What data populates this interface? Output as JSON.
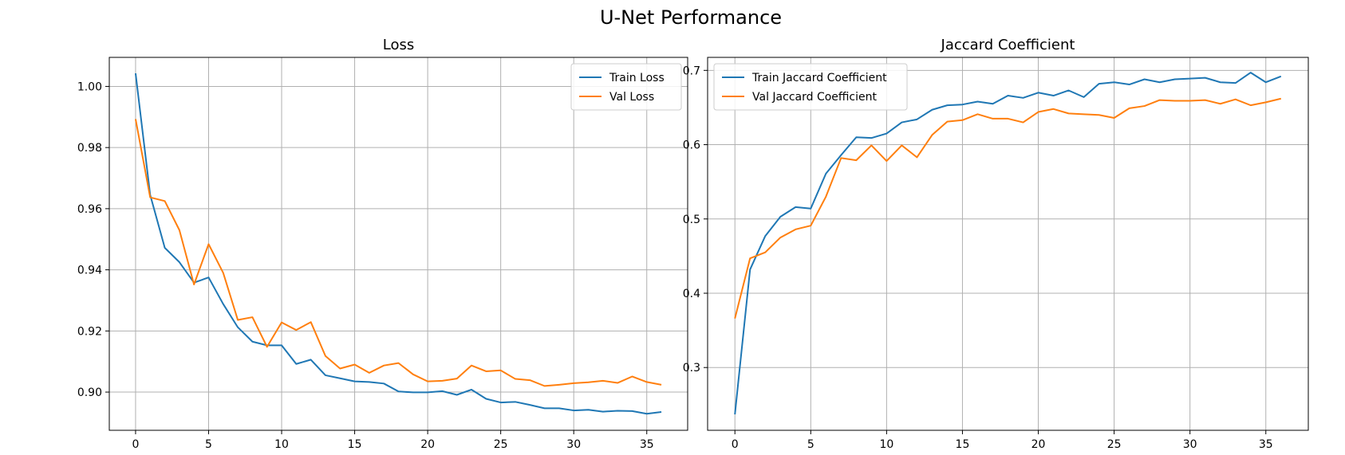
{
  "figure": {
    "title": "U-Net Performance"
  },
  "colors": {
    "train": "#1f77b4",
    "val": "#ff7f0e",
    "grid": "#b0b0b0",
    "legend_border": "#cccccc"
  },
  "chart_data": [
    {
      "type": "line",
      "title": "Loss",
      "xlabel": "",
      "ylabel": "",
      "xlim": [
        -1.8,
        37.8
      ],
      "ylim": [
        0.8875,
        1.0095
      ],
      "xticks": [
        0,
        5,
        10,
        15,
        20,
        25,
        30,
        35
      ],
      "yticks": [
        0.9,
        0.92,
        0.94,
        0.96,
        0.98,
        1.0
      ],
      "ytick_labels": [
        "0.90",
        "0.92",
        "0.94",
        "0.96",
        "0.98",
        "1.00"
      ],
      "grid": true,
      "legend_position": "top-right",
      "x": [
        0,
        1,
        2,
        3,
        4,
        5,
        6,
        7,
        8,
        9,
        10,
        11,
        12,
        13,
        14,
        15,
        16,
        17,
        18,
        19,
        20,
        21,
        22,
        23,
        24,
        25,
        26,
        27,
        28,
        29,
        30,
        31,
        32,
        33,
        34,
        35,
        36
      ],
      "series": [
        {
          "name": "Train Loss",
          "color_key": "train",
          "values": [
            1.0043,
            0.9645,
            0.9472,
            0.9425,
            0.9358,
            0.9375,
            0.9288,
            0.9212,
            0.9165,
            0.9153,
            0.9153,
            0.9092,
            0.9106,
            0.9055,
            0.9045,
            0.9035,
            0.9033,
            0.9028,
            0.9002,
            0.8999,
            0.8999,
            0.9003,
            0.8991,
            0.9008,
            0.8978,
            0.8966,
            0.8968,
            0.8958,
            0.8947,
            0.8947,
            0.894,
            0.8942,
            0.8936,
            0.8939,
            0.8938,
            0.8929,
            0.8935
          ]
        },
        {
          "name": "Val Loss",
          "color_key": "val",
          "values": [
            0.9893,
            0.9637,
            0.9625,
            0.953,
            0.9352,
            0.9484,
            0.939,
            0.9236,
            0.9245,
            0.9148,
            0.9228,
            0.9203,
            0.9229,
            0.9118,
            0.9077,
            0.909,
            0.9063,
            0.9087,
            0.9095,
            0.9058,
            0.9035,
            0.9037,
            0.9044,
            0.9087,
            0.9068,
            0.9071,
            0.9043,
            0.9039,
            0.902,
            0.9024,
            0.9029,
            0.9032,
            0.9037,
            0.903,
            0.9051,
            0.9033,
            0.9024
          ]
        }
      ]
    },
    {
      "type": "line",
      "title": "Jaccard Coefficient",
      "xlabel": "",
      "ylabel": "",
      "xlim": [
        -1.8,
        37.8
      ],
      "ylim": [
        0.2155,
        0.7175
      ],
      "xticks": [
        0,
        5,
        10,
        15,
        20,
        25,
        30,
        35
      ],
      "yticks": [
        0.3,
        0.4,
        0.5,
        0.6,
        0.7
      ],
      "ytick_labels": [
        "0.3",
        "0.4",
        "0.5",
        "0.6",
        "0.7"
      ],
      "grid": true,
      "legend_position": "top-left",
      "x": [
        0,
        1,
        2,
        3,
        4,
        5,
        6,
        7,
        8,
        9,
        10,
        11,
        12,
        13,
        14,
        15,
        16,
        17,
        18,
        19,
        20,
        21,
        22,
        23,
        24,
        25,
        26,
        27,
        28,
        29,
        30,
        31,
        32,
        33,
        34,
        35,
        36
      ],
      "series": [
        {
          "name": "Train Jaccard Coefficient",
          "color_key": "train",
          "values": [
            0.237,
            0.432,
            0.477,
            0.503,
            0.516,
            0.514,
            0.561,
            0.586,
            0.61,
            0.609,
            0.615,
            0.63,
            0.634,
            0.647,
            0.653,
            0.654,
            0.658,
            0.655,
            0.666,
            0.663,
            0.67,
            0.666,
            0.673,
            0.664,
            0.682,
            0.684,
            0.681,
            0.688,
            0.684,
            0.688,
            0.689,
            0.69,
            0.684,
            0.683,
            0.697,
            0.684,
            0.692
          ]
        },
        {
          "name": "Val Jaccard Coefficient",
          "color_key": "val",
          "values": [
            0.366,
            0.447,
            0.455,
            0.475,
            0.486,
            0.491,
            0.53,
            0.582,
            0.579,
            0.599,
            0.578,
            0.599,
            0.583,
            0.613,
            0.631,
            0.633,
            0.641,
            0.635,
            0.635,
            0.63,
            0.644,
            0.648,
            0.642,
            0.641,
            0.64,
            0.636,
            0.649,
            0.652,
            0.66,
            0.659,
            0.659,
            0.66,
            0.655,
            0.661,
            0.653,
            0.657,
            0.662
          ]
        }
      ]
    }
  ]
}
